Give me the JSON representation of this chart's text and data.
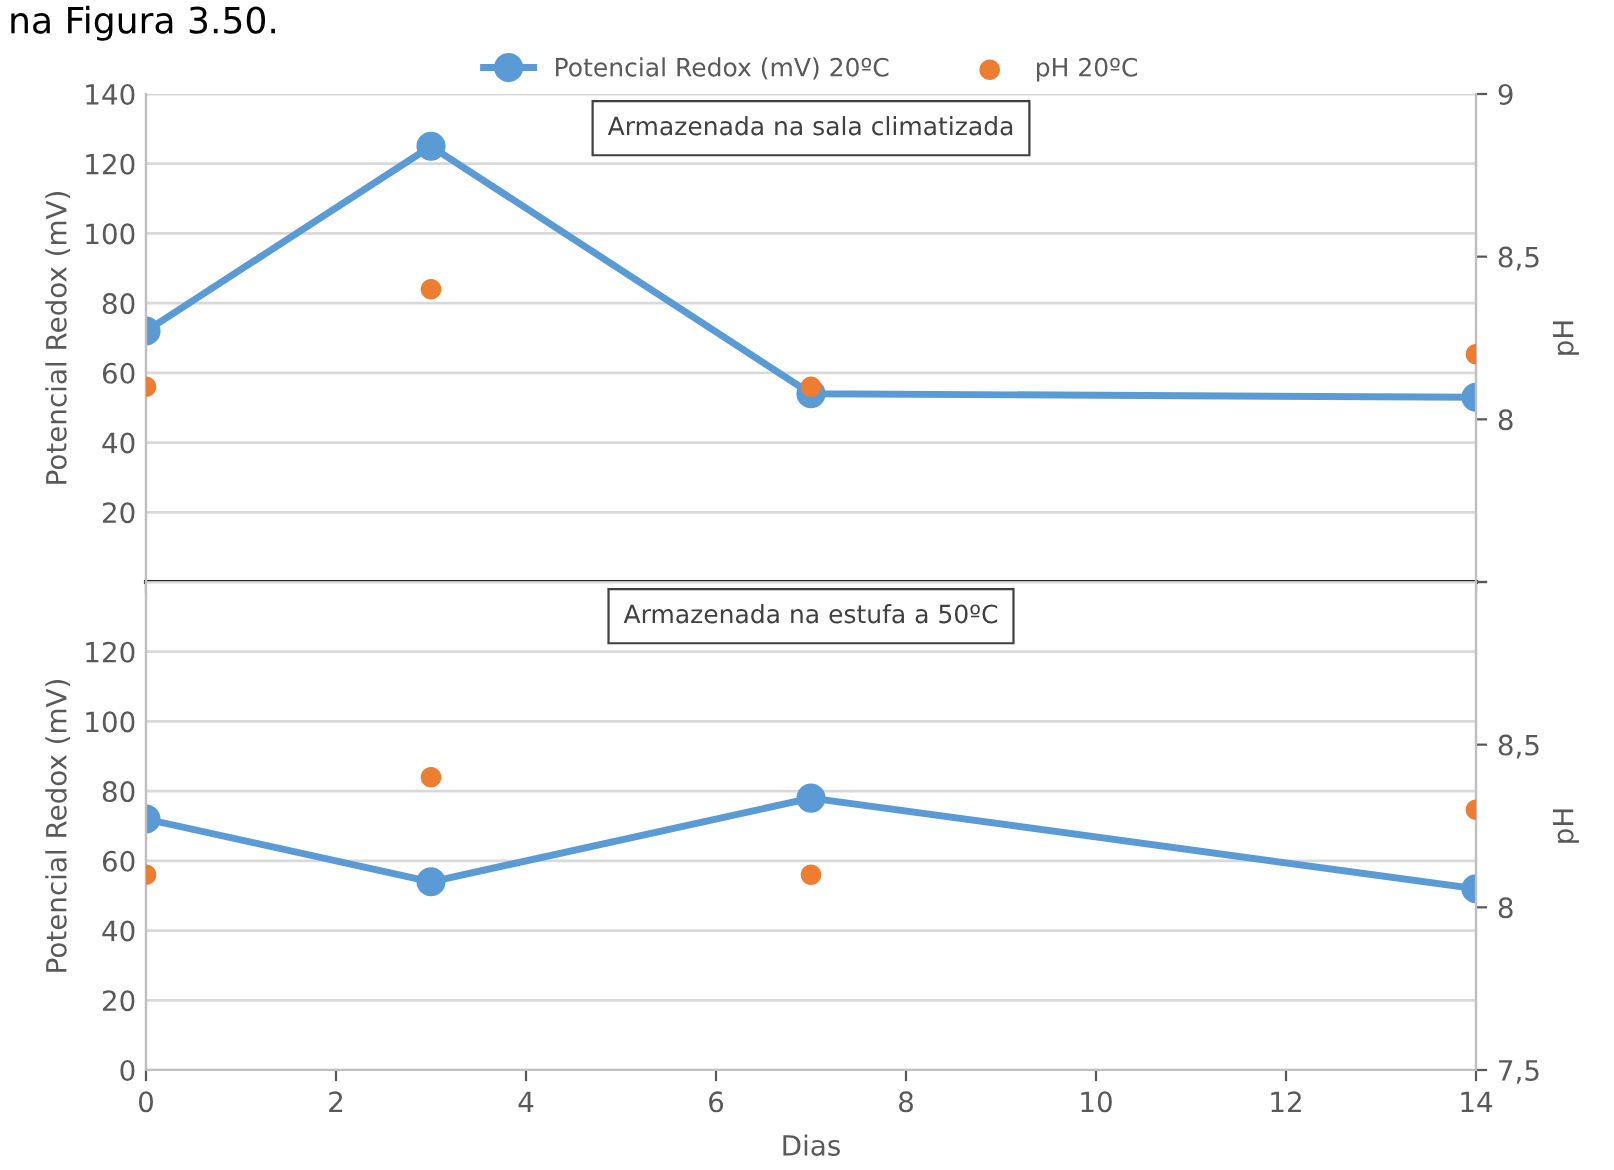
{
  "chart_data": [
    {
      "type": "line",
      "title": "Armazenada na sala climatizada",
      "ylabel": "Potencial Redox (mV)",
      "y2label": "pH",
      "annotations": [
        "na Figura 3.50."
      ],
      "xlim": [
        0,
        14
      ],
      "xticks": [
        0,
        2,
        4,
        6,
        8,
        10,
        12,
        14
      ],
      "ylim": [
        0,
        140
      ],
      "yticks": [
        {
          "value": 0,
          "label": null
        },
        20,
        40,
        60,
        80,
        100,
        120,
        140
      ],
      "y2lim": [
        7.5,
        9
      ],
      "y2ticks": [
        {
          "value": 7.5,
          "label": null
        },
        8,
        {
          "value": 8.5,
          "label": "8,5"
        },
        9
      ],
      "grid": "y",
      "legend": "top",
      "marker": "circle",
      "tick_labels": "y",
      "series": [
        {
          "name": "Potencial Redox (mV) 20ºC",
          "color": "#5b9bd5",
          "x": [
            0,
            3,
            7,
            14
          ],
          "values": [
            72,
            125,
            54,
            53
          ]
        },
        {
          "name": "pH 20ºC",
          "type": "scatter",
          "axis": "y2",
          "color": "#ed7d31",
          "x": [
            0,
            3,
            7,
            14
          ],
          "values": [
            8.1,
            8.4,
            8.1,
            8.2
          ]
        }
      ]
    },
    {
      "type": "line",
      "title": "Armazenada na estufa a 50ºC",
      "xlabel": "Dias",
      "ylabel": "Potencial Redox (mV)",
      "y2label": "pH",
      "xlim": [
        0,
        14
      ],
      "xticks": [
        0,
        2,
        4,
        6,
        8,
        10,
        12,
        14
      ],
      "ylim": [
        0,
        140
      ],
      "yticks": [
        0,
        20,
        40,
        60,
        80,
        100,
        120,
        {
          "value": 140,
          "label": null
        }
      ],
      "y2lim": [
        7.5,
        9
      ],
      "y2ticks": [
        {
          "value": 7.5,
          "label": "7,5"
        },
        8,
        {
          "value": 8.5,
          "label": "8,5"
        },
        {
          "value": 9,
          "label": null
        }
      ],
      "grid": "y",
      "marker": "circle",
      "series": [
        {
          "color": "#5b9bd5",
          "x": [
            0,
            3,
            7,
            14
          ],
          "values": [
            72,
            54,
            78,
            52
          ]
        },
        {
          "type": "scatter",
          "axis": "y2",
          "color": "#ed7d31",
          "x": [
            0,
            3,
            7,
            14
          ],
          "values": [
            8.1,
            8.4,
            8.1,
            8.3
          ]
        }
      ]
    }
  ]
}
